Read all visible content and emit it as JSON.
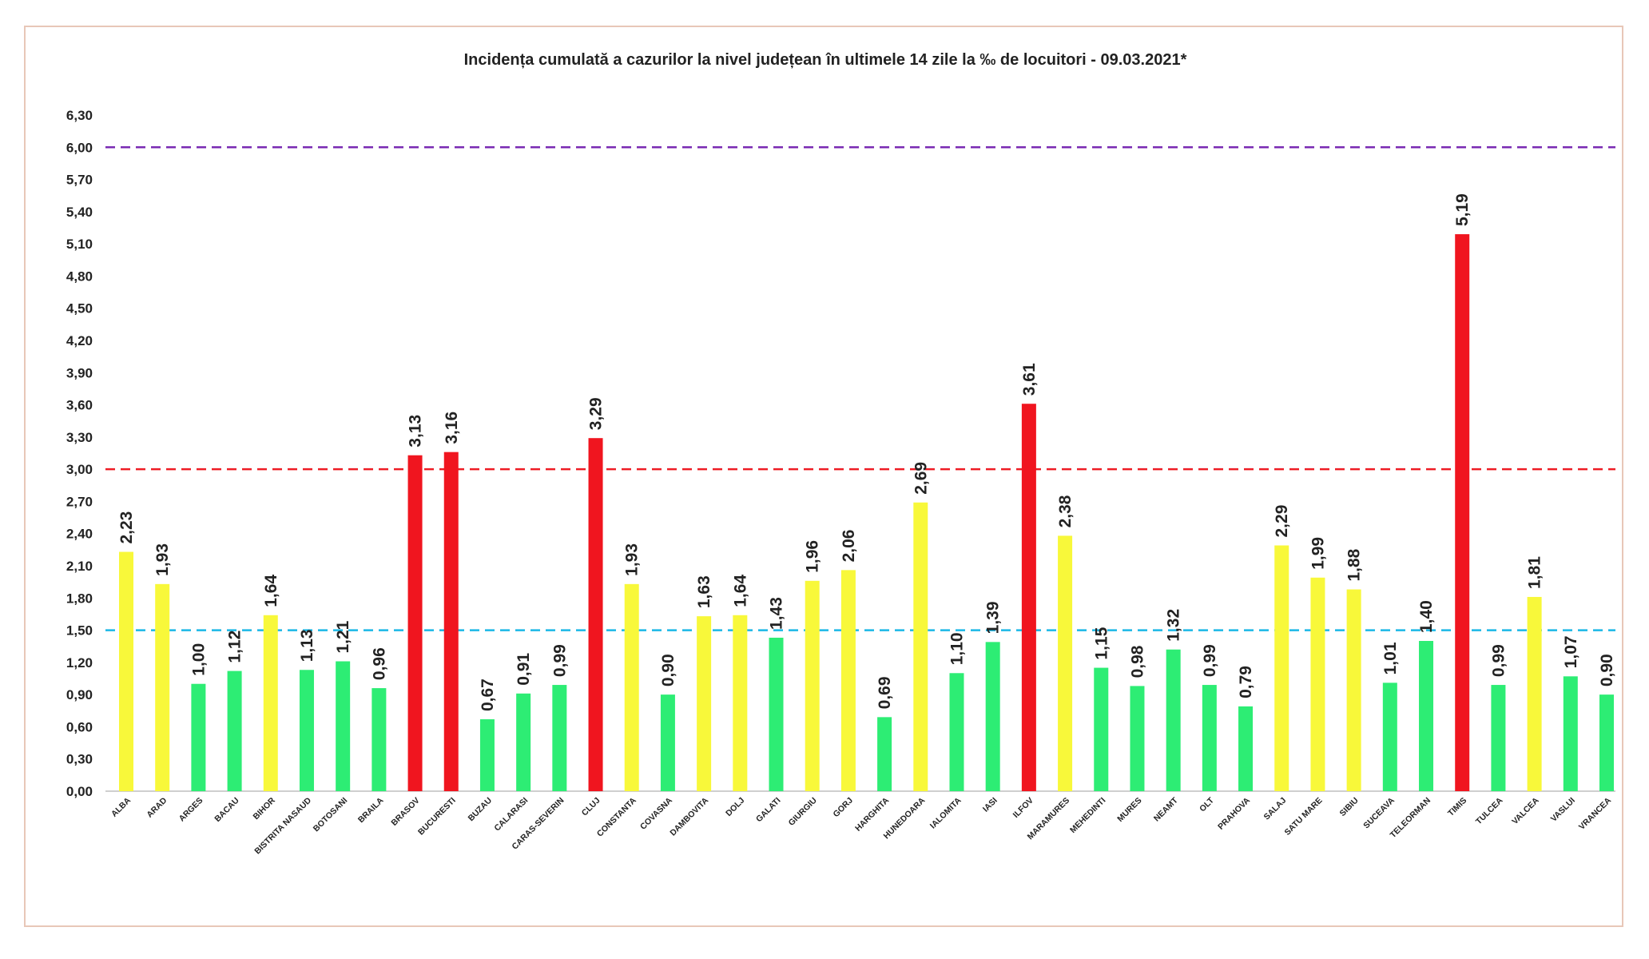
{
  "chart_data": {
    "type": "bar",
    "title": "Incidența cumulată a cazurilor la nivel județean în ultimele 14 zile la ‰ de locuitori - 09.03.2021*",
    "xlabel": "",
    "ylabel": "",
    "ylim": [
      0,
      6.3
    ],
    "yticks": [
      "0,00",
      "0,30",
      "0,60",
      "0,90",
      "1,20",
      "1,50",
      "1,80",
      "2,10",
      "2,40",
      "2,70",
      "3,00",
      "3,30",
      "3,60",
      "3,90",
      "4,20",
      "4,50",
      "4,80",
      "5,10",
      "5,40",
      "5,70",
      "6,00",
      "6,30"
    ],
    "grid": false,
    "legend": "none",
    "categories": [
      "ALBA",
      "ARAD",
      "ARGES",
      "BACAU",
      "BIHOR",
      "BISTRITA NASAUD",
      "BOTOSANI",
      "BRAILA",
      "BRASOV",
      "BUCURESTI",
      "BUZAU",
      "CALARASI",
      "CARAS-SEVERIN",
      "CLUJ",
      "CONSTANTA",
      "COVASNA",
      "DAMBOVITA",
      "DOLJ",
      "GALATI",
      "GIURGIU",
      "GORJ",
      "HARGHITA",
      "HUNEDOARA",
      "IALOMITA",
      "IASI",
      "ILFOV",
      "MARAMURES",
      "MEHEDINTI",
      "MURES",
      "NEAMT",
      "OLT",
      "PRAHOVA",
      "SALAJ",
      "SATU MARE",
      "SIBIU",
      "SUCEAVA",
      "TELEORMAN",
      "TIMIS",
      "TULCEA",
      "VALCEA",
      "VASLUI",
      "VRANCEA"
    ],
    "values": [
      2.23,
      1.93,
      1.0,
      1.12,
      1.64,
      1.13,
      1.21,
      0.96,
      3.13,
      3.16,
      0.67,
      0.91,
      0.99,
      3.29,
      1.93,
      0.9,
      1.63,
      1.64,
      1.43,
      1.96,
      2.06,
      0.69,
      2.69,
      1.1,
      1.39,
      3.61,
      2.38,
      1.15,
      0.98,
      1.32,
      0.99,
      0.79,
      2.29,
      1.99,
      1.88,
      1.01,
      1.4,
      5.19,
      0.99,
      1.81,
      1.07,
      0.9
    ],
    "value_labels": [
      "2,23",
      "1,93",
      "1,00",
      "1,12",
      "1,64",
      "1,13",
      "1,21",
      "0,96",
      "3,13",
      "3,16",
      "0,67",
      "0,91",
      "0,99",
      "3,29",
      "1,93",
      "0,90",
      "1,63",
      "1,64",
      "1,43",
      "1,96",
      "2,06",
      "0,69",
      "2,69",
      "1,10",
      "1,39",
      "3,61",
      "2,38",
      "1,15",
      "0,98",
      "1,32",
      "0,99",
      "0,79",
      "2,29",
      "1,99",
      "1,88",
      "1,01",
      "1,40",
      "5,19",
      "0,99",
      "1,81",
      "1,07",
      "0,90"
    ],
    "colors": {
      "low": "#2ded74",
      "medium": "#f8f83a",
      "high": "#f0151f"
    },
    "thresholds": [
      {
        "value": 1.5,
        "color": "#1ab8e6",
        "style": "dashed"
      },
      {
        "value": 3.0,
        "color": "#ee1c25",
        "style": "dashed"
      },
      {
        "value": 6.0,
        "color": "#7a2bb3",
        "style": "dashed"
      }
    ]
  }
}
